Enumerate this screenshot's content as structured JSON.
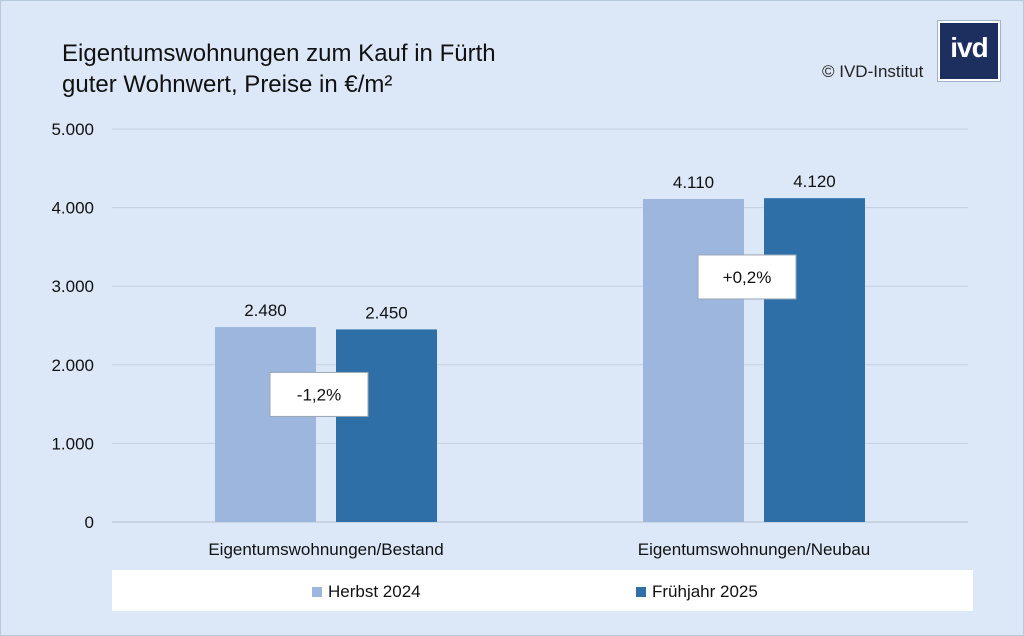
{
  "header": {
    "title_line1": "Eigentumswohnungen zum Kauf in Fürth",
    "title_line2": "guter Wohnwert, Preise in €/m²",
    "copyright": "© IVD-Institut",
    "logo_text": "ivd"
  },
  "chart_data": {
    "type": "bar",
    "categories": [
      "Eigentumswohnungen/Bestand",
      "Eigentumswohnungen/Neubau"
    ],
    "series": [
      {
        "name": "Herbst 2024",
        "values": [
          2480,
          4110
        ],
        "labels": [
          "2.480",
          "4.110"
        ],
        "color": "#9db6de"
      },
      {
        "name": "Frühjahr 2025",
        "values": [
          2450,
          4120
        ],
        "labels": [
          "2.450",
          "4.120"
        ],
        "color": "#2e6fa8"
      }
    ],
    "change_labels": [
      "-1,2%",
      "+0,2%"
    ],
    "ylim": [
      0,
      5000
    ],
    "yticks": [
      0,
      1000,
      2000,
      3000,
      4000,
      5000
    ],
    "ytick_labels": [
      "0",
      "1.000",
      "2.000",
      "3.000",
      "4.000",
      "5.000"
    ],
    "grid": true,
    "legend_position": "bottom"
  }
}
